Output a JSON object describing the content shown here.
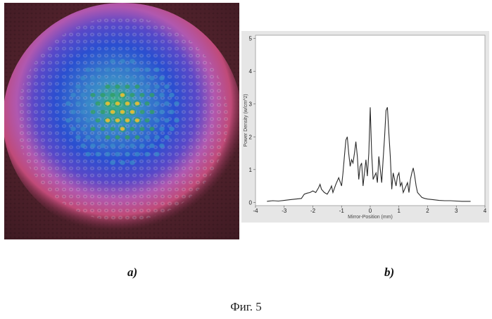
{
  "panels": [
    {
      "label": "a)"
    },
    {
      "label": "b)"
    }
  ],
  "caption": "Фиг. 5",
  "beam_image": {
    "colors": {
      "background": "#5a2830",
      "halo": "#c04a78",
      "edge": "#b070d0",
      "core": "#2a4fd0",
      "mid": "#3a8ac8",
      "hot": "#30a060",
      "peak": "#e0c030"
    }
  },
  "chart_data": {
    "type": "line",
    "xlabel": "Mirror-Position (mm)",
    "ylabel": "Power Density (w/cm^2)",
    "xlim": [
      -4,
      4
    ],
    "ylim": [
      -0.1,
      5.1
    ],
    "xticks": [
      -4,
      -3,
      -2,
      -1,
      0,
      1,
      2,
      3,
      4
    ],
    "yticks": [
      0,
      1,
      2,
      3,
      4,
      5
    ],
    "grid": false,
    "line_color": "#2a2a2a",
    "series": [
      {
        "x": [
          -3.6,
          -3.4,
          -3.2,
          -3.0,
          -2.8,
          -2.6,
          -2.4,
          -2.3,
          -2.2,
          -2.1,
          -2.0,
          -1.9,
          -1.8,
          -1.75,
          -1.7,
          -1.6,
          -1.5,
          -1.4,
          -1.35,
          -1.3,
          -1.2,
          -1.1,
          -1.0,
          -0.95,
          -0.9,
          -0.85,
          -0.8,
          -0.75,
          -0.7,
          -0.65,
          -0.6,
          -0.55,
          -0.5,
          -0.45,
          -0.4,
          -0.35,
          -0.3,
          -0.25,
          -0.2,
          -0.15,
          -0.1,
          -0.05,
          0.0,
          0.05,
          0.1,
          0.15,
          0.2,
          0.25,
          0.3,
          0.35,
          0.4,
          0.45,
          0.5,
          0.55,
          0.6,
          0.65,
          0.7,
          0.75,
          0.8,
          0.85,
          0.9,
          0.95,
          1.0,
          1.05,
          1.1,
          1.15,
          1.2,
          1.25,
          1.3,
          1.35,
          1.4,
          1.45,
          1.5,
          1.55,
          1.6,
          1.65,
          1.7,
          1.8,
          1.9,
          2.0,
          2.2,
          2.4,
          2.6,
          2.8,
          3.0,
          3.2,
          3.5
        ],
        "y": [
          0.03,
          0.05,
          0.04,
          0.06,
          0.08,
          0.1,
          0.12,
          0.25,
          0.28,
          0.3,
          0.35,
          0.3,
          0.45,
          0.55,
          0.4,
          0.3,
          0.25,
          0.4,
          0.5,
          0.3,
          0.55,
          0.75,
          0.5,
          0.9,
          1.4,
          1.9,
          2.0,
          1.5,
          1.1,
          1.3,
          1.2,
          1.5,
          1.85,
          1.4,
          0.7,
          1.1,
          1.2,
          0.5,
          0.9,
          1.3,
          0.8,
          1.5,
          2.9,
          1.5,
          0.7,
          0.8,
          0.9,
          0.6,
          1.4,
          1.0,
          0.6,
          1.3,
          2.0,
          2.8,
          2.9,
          2.1,
          1.4,
          0.4,
          0.9,
          0.7,
          0.5,
          0.8,
          0.9,
          0.5,
          0.6,
          0.3,
          0.4,
          0.5,
          0.6,
          0.3,
          0.7,
          0.9,
          1.05,
          0.8,
          0.5,
          0.3,
          0.25,
          0.15,
          0.12,
          0.1,
          0.08,
          0.06,
          0.05,
          0.05,
          0.04,
          0.03,
          0.03
        ]
      }
    ]
  }
}
